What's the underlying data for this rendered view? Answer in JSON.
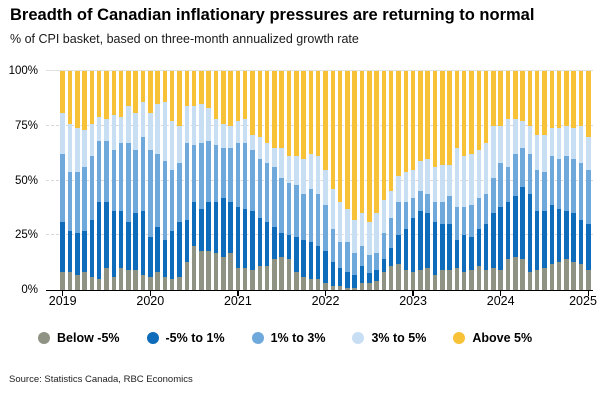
{
  "header": {
    "title": "Breadth of Canadian inflationary pressures are returning to normal",
    "subtitle": "% of CPI basket, based on three-month annualized growth rate"
  },
  "footer": {
    "source": "Source: Statistics Canada, RBC Economics"
  },
  "colors": {
    "below": "#8F9384",
    "neg5to1": "#0E6CBB",
    "p1to3": "#6FA8DB",
    "p3to5": "#C7DEF3",
    "above5": "#F7C138",
    "grid": "#D8D8D8",
    "axis": "#000000"
  },
  "legend": [
    {
      "label": "Below -5%",
      "color": "#8F9384"
    },
    {
      "label": "-5% to 1%",
      "color": "#0E6CBB"
    },
    {
      "label": "1% to 3%",
      "color": "#6FA8DB"
    },
    {
      "label": "3% to 5%",
      "color": "#C7DEF3"
    },
    {
      "label": "Above 5%",
      "color": "#F7C138"
    }
  ],
  "y_axis": {
    "tick_labels": [
      "0%",
      "25%",
      "50%",
      "75%",
      "100%"
    ],
    "min": 0,
    "max": 100
  },
  "x_axis": {
    "tick_labels": [
      "2019",
      "2020",
      "2021",
      "2022",
      "2023",
      "2024",
      "2025"
    ]
  },
  "chart_data": {
    "type": "bar",
    "stacked": true,
    "stack_total": 100,
    "title": "Breadth of Canadian inflationary pressures are returning to normal",
    "xlabel": "",
    "ylabel": "% of CPI basket",
    "ylim": [
      0,
      100
    ],
    "grid": "horizontal dashed at 25/50/75/100",
    "legend_position": "bottom",
    "categories": [
      "2019-01",
      "2019-02",
      "2019-03",
      "2019-04",
      "2019-05",
      "2019-06",
      "2019-07",
      "2019-08",
      "2019-09",
      "2019-10",
      "2019-11",
      "2019-12",
      "2020-01",
      "2020-02",
      "2020-03",
      "2020-04",
      "2020-05",
      "2020-06",
      "2020-07",
      "2020-08",
      "2020-09",
      "2020-10",
      "2020-11",
      "2020-12",
      "2021-01",
      "2021-02",
      "2021-03",
      "2021-04",
      "2021-05",
      "2021-06",
      "2021-07",
      "2021-08",
      "2021-09",
      "2021-10",
      "2021-11",
      "2021-12",
      "2022-01",
      "2022-02",
      "2022-03",
      "2022-04",
      "2022-05",
      "2022-06",
      "2022-07",
      "2022-08",
      "2022-09",
      "2022-10",
      "2022-11",
      "2022-12",
      "2023-01",
      "2023-02",
      "2023-03",
      "2023-04",
      "2023-05",
      "2023-06",
      "2023-07",
      "2023-08",
      "2023-09",
      "2023-10",
      "2023-11",
      "2023-12",
      "2024-01",
      "2024-02",
      "2024-03",
      "2024-04",
      "2024-05",
      "2024-06",
      "2024-07",
      "2024-08",
      "2024-09",
      "2024-10",
      "2024-11",
      "2024-12",
      "2025-01"
    ],
    "series": [
      {
        "name": "Below -5%",
        "color": "#8F9384",
        "values": [
          8,
          8,
          7,
          8,
          6,
          5,
          10,
          6,
          10,
          9,
          9,
          7,
          6,
          8,
          6,
          5,
          6,
          13,
          20,
          18,
          18,
          17,
          15,
          17,
          10,
          10,
          9,
          11,
          11,
          14,
          15,
          14,
          8,
          6,
          5,
          5,
          3,
          2,
          2,
          1,
          1,
          3,
          3,
          4,
          8,
          11,
          12,
          9,
          8,
          9,
          10,
          7,
          9,
          9,
          10,
          8,
          9,
          11,
          9,
          10,
          9,
          14,
          15,
          14,
          8,
          9,
          10,
          12,
          13,
          14,
          13,
          12,
          9
        ]
      },
      {
        "name": "-5% to 1%",
        "color": "#0E6CBB",
        "values": [
          23,
          19,
          19,
          19,
          26,
          35,
          30,
          30,
          26,
          22,
          26,
          29,
          18,
          21,
          17,
          22,
          25,
          19,
          20,
          19,
          22,
          23,
          27,
          23,
          28,
          27,
          27,
          22,
          20,
          15,
          11,
          11,
          16,
          17,
          17,
          15,
          15,
          11,
          8,
          7,
          6,
          8,
          5,
          5,
          6,
          8,
          13,
          19,
          25,
          27,
          25,
          24,
          21,
          21,
          13,
          17,
          15,
          17,
          21,
          25,
          29,
          26,
          28,
          33,
          36,
          27,
          26,
          27,
          24,
          22,
          22,
          20,
          21
        ]
      },
      {
        "name": "1% to 3%",
        "color": "#6FA8DB",
        "values": [
          31,
          27,
          28,
          29,
          29,
          28,
          28,
          28,
          31,
          36,
          29,
          34,
          40,
          33,
          36,
          28,
          27,
          35,
          26,
          30,
          28,
          26,
          23,
          25,
          29,
          30,
          28,
          27,
          27,
          27,
          25,
          24,
          24,
          21,
          24,
          24,
          21,
          15,
          12,
          14,
          10,
          9,
          8,
          8,
          12,
          14,
          15,
          12,
          9,
          9,
          9,
          9,
          10,
          13,
          15,
          13,
          15,
          14,
          14,
          16,
          20,
          16,
          19,
          18,
          18,
          19,
          18,
          22,
          23,
          25,
          25,
          26,
          25
        ]
      },
      {
        "name": "3% to 5%",
        "color": "#C7DEF3",
        "values": [
          19,
          22,
          20,
          17,
          15,
          11,
          10,
          16,
          12,
          17,
          17,
          16,
          17,
          23,
          27,
          22,
          17,
          17,
          18,
          18,
          15,
          12,
          11,
          10,
          10,
          11,
          7,
          10,
          9,
          9,
          14,
          12,
          13,
          16,
          16,
          17,
          16,
          18,
          18,
          15,
          15,
          15,
          15,
          18,
          15,
          12,
          12,
          14,
          13,
          14,
          16,
          16,
          17,
          14,
          27,
          23,
          23,
          22,
          23,
          24,
          17,
          22,
          16,
          12,
          13,
          16,
          17,
          13,
          14,
          14,
          14,
          17,
          15
        ]
      },
      {
        "name": "Above 5%",
        "color": "#F7C138",
        "values": [
          19,
          24,
          26,
          27,
          24,
          21,
          22,
          20,
          21,
          16,
          19,
          14,
          19,
          15,
          14,
          23,
          25,
          16,
          16,
          15,
          17,
          22,
          24,
          25,
          23,
          22,
          29,
          30,
          33,
          35,
          35,
          39,
          39,
          40,
          38,
          39,
          45,
          54,
          60,
          63,
          68,
          65,
          69,
          65,
          59,
          55,
          48,
          46,
          45,
          41,
          40,
          44,
          43,
          43,
          35,
          39,
          38,
          36,
          33,
          25,
          25,
          22,
          22,
          23,
          25,
          29,
          29,
          26,
          26,
          25,
          26,
          25,
          30
        ]
      }
    ]
  }
}
